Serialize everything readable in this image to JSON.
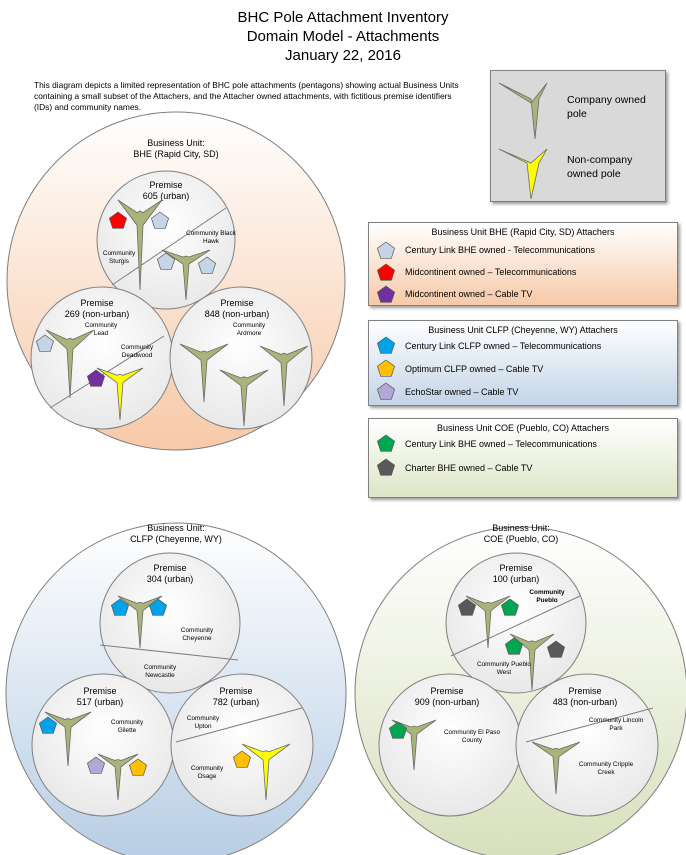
{
  "title": {
    "line1": "BHC Pole Attachment Inventory",
    "line2": "Domain Model - Attachments",
    "line3": "January 22, 2016"
  },
  "description": "This diagram depicts a limited representation of BHC pole attachments (pentagons) showing actual Business Units containing a small subset of the Attachers, and the Attacher owned attachments, with fictitious premise identifiers (IDs) and community names.",
  "legend": {
    "company_pole": "Company owned pole",
    "noncompany_pole": "Non-company owned pole"
  },
  "attacher_boxes": {
    "bhe": {
      "title": "Business Unit BHE (Rapid City, SD) Attachers",
      "items": [
        "Century Link BHE owned - Telecommunications",
        "Midcontinent owned – Telecommunications",
        "Midcontinent owned – Cable TV"
      ]
    },
    "clfp": {
      "title": "Business Unit CLFP (Cheyenne, WY) Attachers",
      "items": [
        "Century Link CLFP owned – Telecommunications",
        "Optimum CLFP owned – Cable TV",
        "EchoStar owned – Cable TV"
      ]
    },
    "coe": {
      "title": "Business Unit COE (Pueblo, CO) Attachers",
      "items": [
        "Century Link BHE owned – Telecommunications",
        "Charter BHE owned – Cable TV"
      ]
    }
  },
  "business_units": {
    "bhe": {
      "label": "Business Unit:",
      "name": "BHE (Rapid City, SD)"
    },
    "clfp": {
      "label": "Business Unit:",
      "name": "CLFP (Cheyenne, WY)"
    },
    "coe": {
      "label": "Business Unit:",
      "name": "COE (Pueblo, CO)"
    }
  },
  "premises": {
    "p605": {
      "label": "Premise",
      "id": "605 (urban)",
      "communities": [
        "Community Black Hawk",
        "Community Sturgis"
      ]
    },
    "p269": {
      "label": "Premise",
      "id": "269 (non-urban)",
      "communities": [
        "Community Lead",
        "Community Deadwood"
      ]
    },
    "p848": {
      "label": "Premise",
      "id": "848 (non-urban)",
      "communities": [
        "Community Ardmore"
      ]
    },
    "p304": {
      "label": "Premise",
      "id": "304 (urban)",
      "communities": [
        "Community Cheyenne",
        "Community Newcastle"
      ]
    },
    "p517": {
      "label": "Premise",
      "id": "517 (urban)",
      "communities": [
        "Community Gilette"
      ]
    },
    "p782": {
      "label": "Premise",
      "id": "782 (urban)",
      "communities": [
        "Community Upton",
        "Community Osage"
      ]
    },
    "p100": {
      "label": "Premise",
      "id": "100 (urban)",
      "communities": [
        "Community Pueblo",
        "Community Pueblo West"
      ]
    },
    "p909": {
      "label": "Premise",
      "id": "909 (non-urban)",
      "communities": [
        "Community El Paso County"
      ]
    },
    "p483": {
      "label": "Premise",
      "id": "483 (non-urban)",
      "communities": [
        "Community Lincoln Park",
        "Community Cripple Creek"
      ]
    }
  },
  "colors": {
    "pole_company": "#a9b47a",
    "pole_noncompany": "#ffff00",
    "century_link_bhe": "#c5d5e6",
    "midcontinent_telecom": "#ff0000",
    "midcontinent_cable": "#7030a0",
    "century_link_clfp": "#00a2e8",
    "optimum": "#ffc000",
    "echostar": "#b4a7d6",
    "century_link_coe": "#00a651",
    "charter": "#595959"
  }
}
